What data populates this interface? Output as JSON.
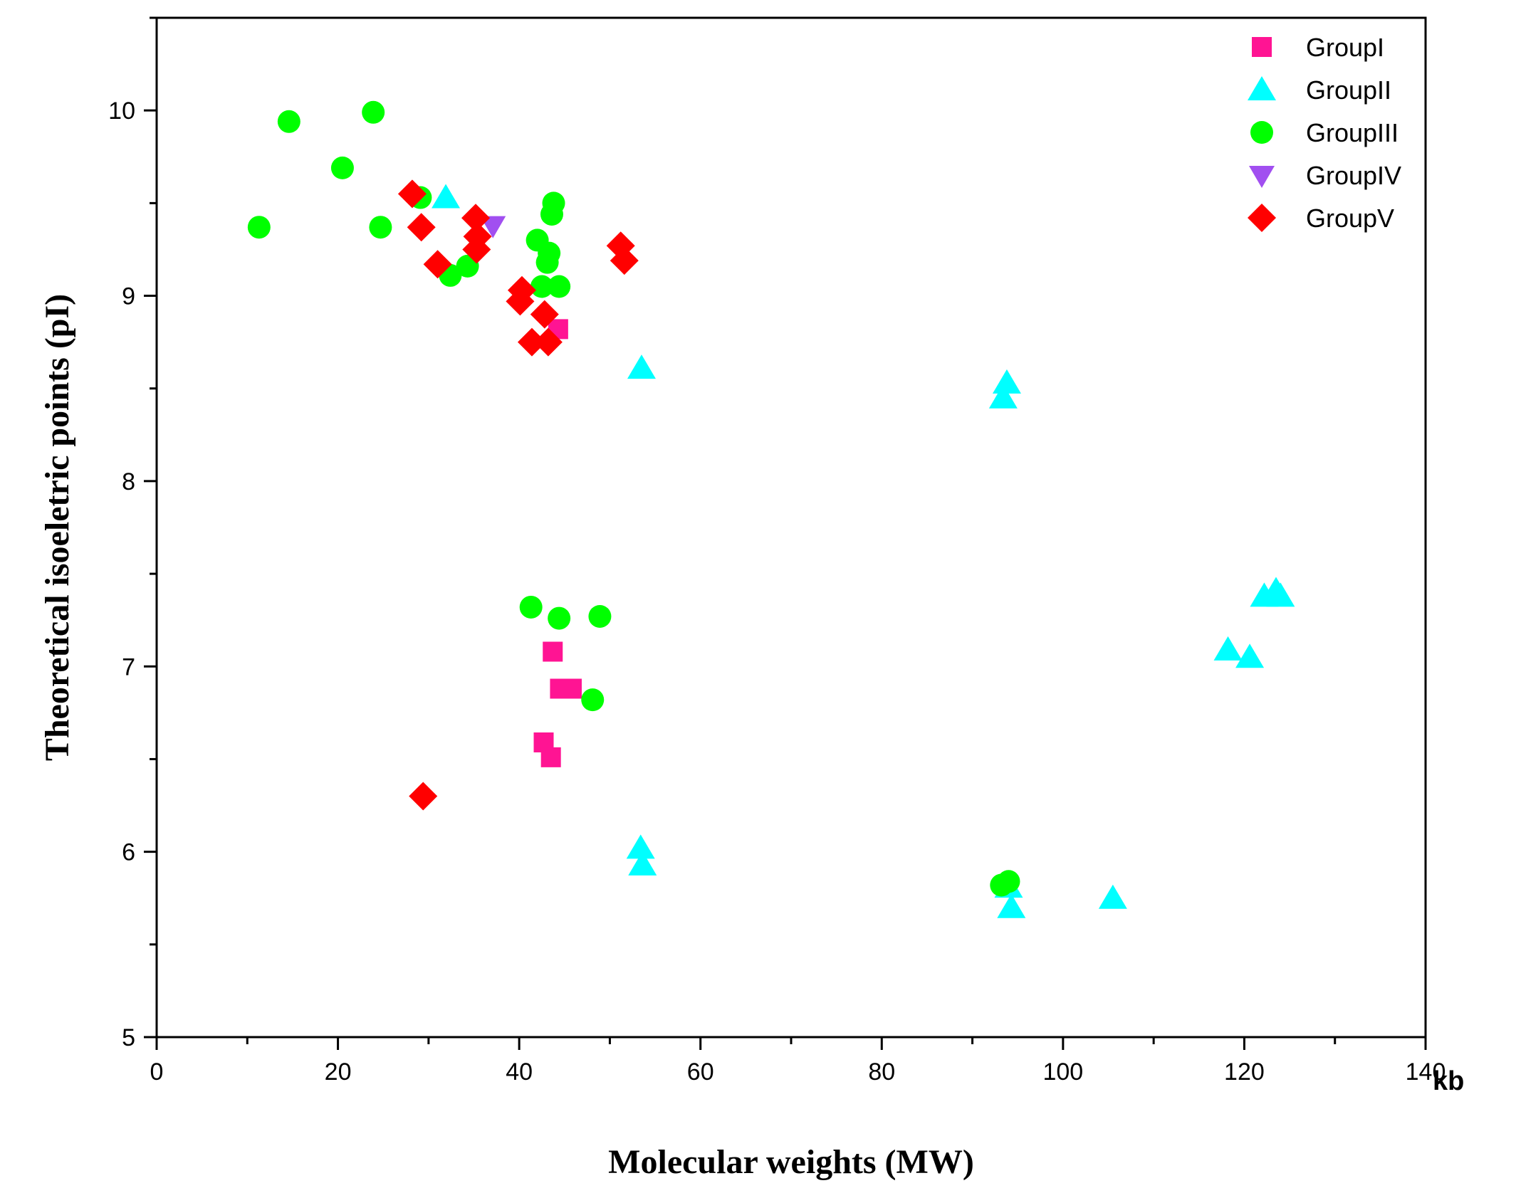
{
  "chart_data": {
    "type": "scatter",
    "title": "",
    "xlabel": "Molecular weights (MW)",
    "ylabel": "Theoretical isoeletric points (pI)",
    "x_unit": "kb",
    "xlim": [
      0,
      140
    ],
    "ylim": [
      5,
      10.5
    ],
    "x_ticks": [
      0,
      20,
      40,
      60,
      80,
      100,
      120,
      140
    ],
    "y_ticks": [
      5,
      6,
      7,
      8,
      9,
      10
    ],
    "grid": false,
    "legend_position": "top-right",
    "series": [
      {
        "name": "GroupI",
        "marker": "square",
        "color": "#ff1493",
        "x": [
          44.3,
          43.7,
          44.5,
          45.8,
          42.7,
          43.5
        ],
        "y": [
          8.82,
          7.08,
          6.88,
          6.88,
          6.59,
          6.51
        ]
      },
      {
        "name": "GroupII",
        "marker": "triangle-up",
        "color": "#00ffff",
        "x": [
          31.9,
          53.5,
          93.8,
          93.4,
          53.4,
          53.6,
          94.0,
          94.3,
          105.5,
          118.2,
          120.6,
          122.2,
          123.5,
          124.0
        ],
        "y": [
          9.53,
          8.61,
          8.53,
          8.45,
          6.02,
          5.93,
          5.81,
          5.7,
          5.75,
          7.09,
          7.05,
          7.38,
          7.41,
          7.38
        ]
      },
      {
        "name": "GroupIII",
        "marker": "circle",
        "color": "#00ff00",
        "x": [
          11.3,
          14.6,
          20.5,
          23.9,
          24.7,
          29.1,
          32.4,
          34.3,
          42.0,
          43.3,
          43.6,
          43.8,
          43.1,
          44.4,
          42.5,
          41.3,
          44.4,
          48.9,
          48.1,
          93.2,
          94.0
        ],
        "y": [
          9.37,
          9.94,
          9.69,
          9.99,
          9.37,
          9.53,
          9.11,
          9.16,
          9.3,
          9.23,
          9.44,
          9.5,
          9.18,
          9.05,
          9.05,
          7.32,
          7.26,
          7.27,
          6.82,
          5.82,
          5.84
        ]
      },
      {
        "name": "GroupIV",
        "marker": "triangle-down",
        "color": "#a14ff0",
        "x": [
          37.1
        ],
        "y": [
          9.38
        ]
      },
      {
        "name": "GroupV",
        "marker": "diamond",
        "color": "#ff0000",
        "x": [
          28.2,
          29.2,
          31.0,
          35.2,
          35.4,
          35.3,
          40.3,
          40.1,
          42.8,
          41.4,
          43.2,
          51.2,
          51.6,
          29.4
        ],
        "y": [
          9.55,
          9.37,
          9.17,
          9.42,
          9.32,
          9.25,
          9.03,
          8.97,
          8.9,
          8.75,
          8.75,
          9.27,
          9.19,
          6.3
        ]
      }
    ]
  }
}
